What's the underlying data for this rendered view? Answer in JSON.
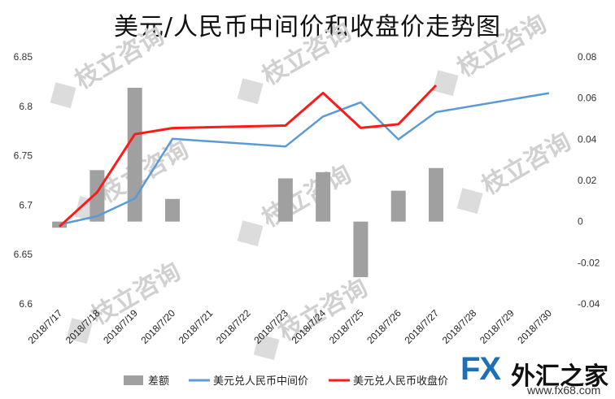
{
  "chart_data": {
    "type": "bar+line",
    "title": "美元/人民币中间价和收盘价走势图",
    "categories": [
      "2018/7/17",
      "2018/7/18",
      "2018/7/19",
      "2018/7/20",
      "2018/7/21",
      "2018/7/22",
      "2018/7/23",
      "2018/7/24",
      "2018/7/25",
      "2018/7/26",
      "2018/7/27",
      "2018/7/28",
      "2018/7/29",
      "2018/7/30"
    ],
    "y_left": {
      "min": 6.6,
      "max": 6.85,
      "ticks": [
        "6.85",
        "6.8",
        "6.75",
        "6.7",
        "6.65",
        "6.6"
      ]
    },
    "y_right": {
      "min": -0.04,
      "max": 0.08,
      "ticks": [
        "0.08",
        "0.06",
        "0.04",
        "0.02",
        "0",
        "-0.02",
        "-0.04"
      ]
    },
    "series": [
      {
        "name": "差额",
        "type": "bar",
        "axis": "right",
        "color": "#a0a0a0",
        "points": [
          [
            "2018/7/17",
            -0.003
          ],
          [
            "2018/7/18",
            0.025
          ],
          [
            "2018/7/19",
            0.065
          ],
          [
            "2018/7/20",
            0.011
          ],
          [
            "2018/7/23",
            0.021
          ],
          [
            "2018/7/24",
            0.024
          ],
          [
            "2018/7/25",
            -0.027
          ],
          [
            "2018/7/26",
            0.015
          ],
          [
            "2018/7/27",
            0.026
          ]
        ]
      },
      {
        "name": "美元兑人民币中间价",
        "type": "line",
        "axis": "left",
        "color": "#5b9bd5",
        "points": [
          [
            "2018/7/17",
            6.6803
          ],
          [
            "2018/7/18",
            6.6888
          ],
          [
            "2018/7/19",
            6.7066
          ],
          [
            "2018/7/20",
            6.7671
          ],
          [
            "2018/7/23",
            6.7593
          ],
          [
            "2018/7/24",
            6.7896
          ],
          [
            "2018/7/25",
            6.804
          ],
          [
            "2018/7/26",
            6.7665
          ],
          [
            "2018/7/27",
            6.7941
          ],
          [
            "2018/7/30",
            6.8133
          ]
        ]
      },
      {
        "name": "美元兑人民币收盘价",
        "type": "line",
        "axis": "left",
        "color": "#ff1a1a",
        "points": [
          [
            "2018/7/17",
            6.6783
          ],
          [
            "2018/7/18",
            6.713
          ],
          [
            "2018/7/19",
            6.7717
          ],
          [
            "2018/7/20",
            6.778
          ],
          [
            "2018/7/23",
            6.7805
          ],
          [
            "2018/7/24",
            6.8135
          ],
          [
            "2018/7/25",
            6.7781
          ],
          [
            "2018/7/26",
            6.7818
          ],
          [
            "2018/7/27",
            6.8212
          ]
        ]
      }
    ],
    "legend": "bottom",
    "grid": false
  },
  "watermark": {
    "text": "枝立咨询"
  },
  "brand": {
    "fx": "FX",
    "cn": "外汇之家",
    "url": "www.fx68.com"
  }
}
